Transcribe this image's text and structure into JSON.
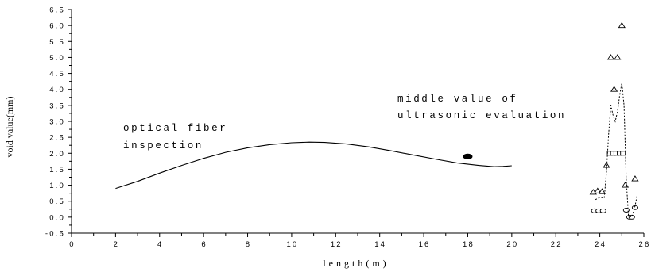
{
  "chart_data": {
    "type": "line",
    "title": "",
    "xlabel": "length(m)",
    "ylabel": "void value(mm)",
    "xlim": [
      0,
      26
    ],
    "ylim": [
      -0.5,
      6.5
    ],
    "xticks": [
      "0",
      "2",
      "4",
      "6",
      "8",
      "10",
      "12",
      "14",
      "16",
      "18",
      "20",
      "22",
      "24",
      "26"
    ],
    "yticks": [
      "-0.5",
      "0.0",
      "0.5",
      "1.0",
      "1.5",
      "2.0",
      "2.5",
      "3.0",
      "3.5",
      "4.0",
      "4.5",
      "5.0",
      "5.5",
      "6.0",
      "6.5"
    ],
    "series": [
      {
        "style": "solid-line",
        "x": [
          2,
          3,
          4,
          5,
          6,
          7,
          8,
          9,
          10,
          10.8,
          11.5,
          12.5,
          13.5,
          14.5,
          15.5,
          16.5,
          17.5,
          18.5,
          19.2,
          19.6,
          20
        ],
        "y": [
          0.9,
          1.12,
          1.38,
          1.62,
          1.84,
          2.03,
          2.17,
          2.27,
          2.33,
          2.35,
          2.34,
          2.29,
          2.2,
          2.08,
          1.95,
          1.82,
          1.7,
          1.62,
          1.58,
          1.59,
          1.61
        ]
      },
      {
        "style": "filled-ellipse",
        "x": [
          18
        ],
        "y": [
          1.9
        ]
      },
      {
        "style": "triangle-markers",
        "x": [
          23.7,
          23.9,
          24.1,
          24.3,
          24.5,
          24.65,
          24.8,
          25.0,
          25.15,
          25.6
        ],
        "y": [
          0.78,
          0.82,
          0.8,
          1.62,
          5.0,
          4.0,
          5.0,
          6.0,
          1.0,
          1.2
        ]
      },
      {
        "style": "square-markers",
        "x": [
          24.45,
          24.6,
          24.75,
          24.9,
          25.05
        ],
        "y": [
          2.0,
          2.0,
          2.0,
          2.0,
          2.0
        ]
      },
      {
        "style": "circle-markers",
        "x": [
          23.75,
          23.95,
          24.15,
          25.2,
          25.35,
          25.45,
          25.6
        ],
        "y": [
          0.2,
          0.2,
          0.2,
          0.22,
          0.0,
          0.0,
          0.3
        ]
      },
      {
        "style": "dotted-line",
        "x": [
          23.8,
          24.0,
          24.2,
          24.3,
          24.4,
          24.5,
          24.6,
          24.7,
          24.8,
          24.9,
          25.0,
          25.1,
          25.2,
          25.3,
          25.45,
          25.6,
          25.7
        ],
        "y": [
          0.55,
          0.62,
          0.6,
          1.4,
          2.6,
          3.5,
          3.2,
          3.0,
          3.3,
          3.8,
          4.2,
          3.5,
          1.2,
          0.05,
          0.0,
          0.35,
          0.7
        ]
      }
    ],
    "annotations": [
      {
        "line1": "optical fiber",
        "line2": "inspection"
      },
      {
        "line1": "middle value of",
        "line2": "ultrasonic evaluation"
      }
    ]
  }
}
